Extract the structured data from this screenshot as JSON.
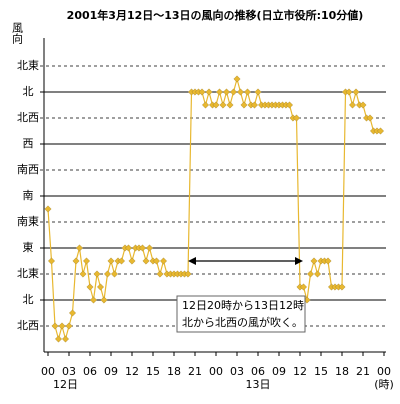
{
  "chart_data": {
    "type": "line",
    "title": "2001年3月12日～13日の風向の推移(日立市役所:10分値)",
    "y_label": "風向",
    "x": [
      0,
      0.5,
      1,
      1.5,
      2,
      2.5,
      3,
      3.5,
      4,
      4.5,
      5,
      5.5,
      6,
      6.5,
      7,
      7.5,
      8,
      8.5,
      9,
      9.5,
      10,
      10.5,
      11,
      11.5,
      12,
      12.5,
      13,
      13.5,
      14,
      14.5,
      15,
      15.5,
      16,
      16.5,
      17,
      17.5,
      18,
      18.5,
      19,
      19.5,
      20,
      20.5,
      21,
      21.5,
      22,
      22.5,
      23,
      23.5,
      24,
      24.5,
      25,
      25.5,
      26,
      26.5,
      27,
      27.5,
      28,
      28.5,
      29,
      29.5,
      30,
      30.5,
      31,
      31.5,
      32,
      32.5,
      33,
      33.5,
      34,
      34.5,
      35,
      35.5,
      36,
      36.5,
      37,
      37.5,
      38,
      38.5,
      39,
      39.5,
      40,
      40.5,
      41,
      41.5,
      42,
      42.5,
      43,
      43.5,
      44,
      44.5,
      45,
      45.5,
      46,
      46.5,
      47,
      47.5
    ],
    "series": [
      {
        "name": "風向",
        "color": "#e8b830",
        "values": [
          157.5,
          67.5,
          -45,
          -67.5,
          -45,
          -67.5,
          -45,
          -22.5,
          67.5,
          90,
          45,
          67.5,
          22.5,
          0,
          45,
          22.5,
          0,
          45,
          67.5,
          45,
          67.5,
          67.5,
          90,
          90,
          67.5,
          90,
          90,
          90,
          67.5,
          90,
          67.5,
          67.5,
          45,
          67.5,
          45,
          45,
          45,
          45,
          45,
          45,
          45,
          360,
          360,
          360,
          360,
          337.5,
          360,
          337.5,
          337.5,
          360,
          337.5,
          360,
          337.5,
          360,
          382.5,
          360,
          337.5,
          360,
          337.5,
          337.5,
          360,
          337.5,
          337.5,
          337.5,
          337.5,
          337.5,
          337.5,
          337.5,
          337.5,
          337.5,
          315,
          315,
          22.5,
          22.5,
          0,
          45,
          67.5,
          45,
          67.5,
          67.5,
          67.5,
          22.5,
          22.5,
          22.5,
          22.5,
          360,
          360,
          337.5,
          360,
          337.5,
          337.5,
          315,
          315,
          292.5,
          292.5,
          292.5
        ]
      }
    ],
    "xlim": [
      0,
      48
    ],
    "xticks": [
      {
        "value": 0,
        "label": "00"
      },
      {
        "value": 3,
        "label": "03"
      },
      {
        "value": 6,
        "label": "06"
      },
      {
        "value": 9,
        "label": "09"
      },
      {
        "value": 12,
        "label": "12"
      },
      {
        "value": 15,
        "label": "15"
      },
      {
        "value": 18,
        "label": "18"
      },
      {
        "value": 21,
        "label": "21"
      },
      {
        "value": 24,
        "label": "00"
      },
      {
        "value": 27,
        "label": "03"
      },
      {
        "value": 30,
        "label": "06"
      },
      {
        "value": 33,
        "label": "09"
      },
      {
        "value": 36,
        "label": "12"
      },
      {
        "value": 39,
        "label": "15"
      },
      {
        "value": 42,
        "label": "18"
      },
      {
        "value": 45,
        "label": "21"
      },
      {
        "value": 48,
        "label": "00"
      }
    ],
    "x_sublabels": [
      {
        "value": 2.5,
        "label": "12日"
      },
      {
        "value": 30,
        "label": "13日"
      },
      {
        "value": 48,
        "label": "(時)"
      }
    ],
    "ylim": [
      -90,
      450
    ],
    "yticks": [
      {
        "value": -45,
        "label": "北西"
      },
      {
        "value": 0,
        "label": "北"
      },
      {
        "value": 45,
        "label": "北東"
      },
      {
        "value": 90,
        "label": "東"
      },
      {
        "value": 135,
        "label": "南東"
      },
      {
        "value": 180,
        "label": "南"
      },
      {
        "value": 225,
        "label": "南西"
      },
      {
        "value": 270,
        "label": "西"
      },
      {
        "value": 315,
        "label": "北西"
      },
      {
        "value": 360,
        "label": "北"
      },
      {
        "value": 405,
        "label": "北東"
      }
    ],
    "grid": true,
    "annotation": [
      "12日20時から13日12時",
      "北から北西の風が吹く。"
    ]
  }
}
